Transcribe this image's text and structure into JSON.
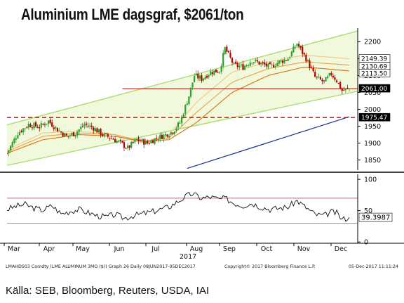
{
  "title": "Aluminium LME dagsgraf, $2061/ton",
  "source": "Källa: SEB, Bloomberg, Reuters, USDA, IAI",
  "colors": {
    "channel_fill": "#f1f9dc",
    "channel_line": "#a6d96a",
    "candle_up": "#2ca02c",
    "candle_down": "#b00000",
    "ma_short": "#f5c98a",
    "ma_mid": "#f0a650",
    "ma_long": "#d97a1e",
    "ma_200": "#1f2f8f",
    "support_line": "#cc0000",
    "rsi_line": "#111111",
    "rsi_high": "#e06060",
    "rsi_low": "#66bb66"
  },
  "chart_data": [
    {
      "type": "candlestick",
      "title": "",
      "ylim": [
        1820,
        2240
      ],
      "yticks": [
        1850,
        1900,
        1950,
        2000,
        2050,
        2100,
        2150,
        2200
      ],
      "x_labels": [
        "Mar",
        "Apr",
        "May",
        "Jun",
        "Jul",
        "Aug",
        "Sep",
        "Oct",
        "Nov",
        "Dec"
      ],
      "x_sublabel": "2017",
      "price_path": [
        [
          0,
          1870
        ],
        [
          6,
          1930
        ],
        [
          12,
          1955
        ],
        [
          18,
          1948
        ],
        [
          23,
          1965
        ],
        [
          28,
          1940
        ],
        [
          33,
          1920
        ],
        [
          38,
          1930
        ],
        [
          43,
          1955
        ],
        [
          48,
          1945
        ],
        [
          53,
          1925
        ],
        [
          58,
          1915
        ],
        [
          63,
          1900
        ],
        [
          67,
          1885
        ],
        [
          72,
          1910
        ],
        [
          78,
          1900
        ],
        [
          83,
          1915
        ],
        [
          88,
          1925
        ],
        [
          92,
          1935
        ],
        [
          96,
          1960
        ],
        [
          101,
          2040
        ],
        [
          104,
          2100
        ],
        [
          108,
          2090
        ],
        [
          113,
          2110
        ],
        [
          118,
          2115
        ],
        [
          121,
          2180
        ],
        [
          126,
          2130
        ],
        [
          131,
          2125
        ],
        [
          136,
          2145
        ],
        [
          141,
          2135
        ],
        [
          146,
          2125
        ],
        [
          151,
          2140
        ],
        [
          156,
          2150
        ],
        [
          161,
          2195
        ],
        [
          166,
          2150
        ],
        [
          171,
          2095
        ],
        [
          176,
          2080
        ],
        [
          180,
          2105
        ],
        [
          183,
          2085
        ],
        [
          186,
          2055
        ],
        [
          190,
          2061
        ]
      ],
      "last_index": 190,
      "horizontal_support": 2061,
      "dashed_support": 1975.47,
      "price_labels": [
        {
          "text": "2149.39",
          "value": 2149.39
        },
        {
          "text": "2130.69",
          "value": 2130.69
        },
        {
          "text": "2113.50",
          "value": 2113.5
        },
        {
          "text": "2061.00",
          "value": 2061.0
        },
        {
          "text": "1975.47",
          "value": 1975.47
        }
      ],
      "channel_lower": [
        [
          0,
          1834
        ],
        [
          190,
          2048
        ]
      ],
      "channel_upper": [
        [
          0,
          1954
        ],
        [
          190,
          2225
        ]
      ],
      "ma_200_path": [
        [
          100,
          1825
        ],
        [
          190,
          1978
        ]
      ],
      "moving_averages": [
        {
          "name": "ma_short",
          "points": [
            [
              0,
              1880
            ],
            [
              20,
              1930
            ],
            [
              40,
              1935
            ],
            [
              60,
              1925
            ],
            [
              75,
              1900
            ],
            [
              90,
              1925
            ],
            [
              105,
              2020
            ],
            [
              125,
              2110
            ],
            [
              145,
              2140
            ],
            [
              165,
              2160
            ],
            [
              190,
              2149.39
            ]
          ]
        },
        {
          "name": "ma_mid",
          "points": [
            [
              0,
              1875
            ],
            [
              20,
              1920
            ],
            [
              40,
              1930
            ],
            [
              60,
              1925
            ],
            [
              75,
              1905
            ],
            [
              90,
              1915
            ],
            [
              105,
              1990
            ],
            [
              125,
              2080
            ],
            [
              145,
              2120
            ],
            [
              165,
              2140
            ],
            [
              190,
              2130.69
            ]
          ]
        },
        {
          "name": "ma_long",
          "points": [
            [
              0,
              1870
            ],
            [
              20,
              1910
            ],
            [
              40,
              1925
            ],
            [
              60,
              1920
            ],
            [
              75,
              1905
            ],
            [
              90,
              1910
            ],
            [
              105,
              1960
            ],
            [
              125,
              2050
            ],
            [
              145,
              2100
            ],
            [
              165,
              2125
            ],
            [
              190,
              2113.5
            ]
          ]
        }
      ]
    },
    {
      "type": "line",
      "title": "",
      "ylim": [
        -2,
        108
      ],
      "yticks": [
        0,
        50,
        100
      ],
      "levels": [
        70,
        30
      ],
      "last_value": 39.3987,
      "last_label": "39.3987",
      "rsi_path": [
        [
          0,
          52
        ],
        [
          5,
          57
        ],
        [
          10,
          60
        ],
        [
          15,
          54
        ],
        [
          20,
          51
        ],
        [
          25,
          58
        ],
        [
          30,
          45
        ],
        [
          35,
          49
        ],
        [
          40,
          52
        ],
        [
          45,
          47
        ],
        [
          50,
          42
        ],
        [
          55,
          40
        ],
        [
          60,
          44
        ],
        [
          65,
          38
        ],
        [
          70,
          42
        ],
        [
          75,
          45
        ],
        [
          80,
          48
        ],
        [
          85,
          52
        ],
        [
          90,
          56
        ],
        [
          95,
          65
        ],
        [
          100,
          74
        ],
        [
          103,
          77
        ],
        [
          108,
          70
        ],
        [
          113,
          72
        ],
        [
          118,
          68
        ],
        [
          121,
          70
        ],
        [
          126,
          62
        ],
        [
          131,
          58
        ],
        [
          136,
          62
        ],
        [
          141,
          56
        ],
        [
          146,
          52
        ],
        [
          151,
          54
        ],
        [
          156,
          56
        ],
        [
          161,
          66
        ],
        [
          166,
          55
        ],
        [
          171,
          44
        ],
        [
          176,
          42
        ],
        [
          180,
          48
        ],
        [
          183,
          46
        ],
        [
          186,
          36
        ],
        [
          190,
          39.4
        ]
      ]
    }
  ],
  "footer": {
    "left": "LMAHDS03 Comdty (LME ALUMINUM 3MO ($)) Graph 26  Daily 08JUN2017-05DEC2017",
    "middle": "Copyright© 2017 Bloomberg Finance L.P.",
    "right": "05-Dec-2017 11:11:24"
  }
}
